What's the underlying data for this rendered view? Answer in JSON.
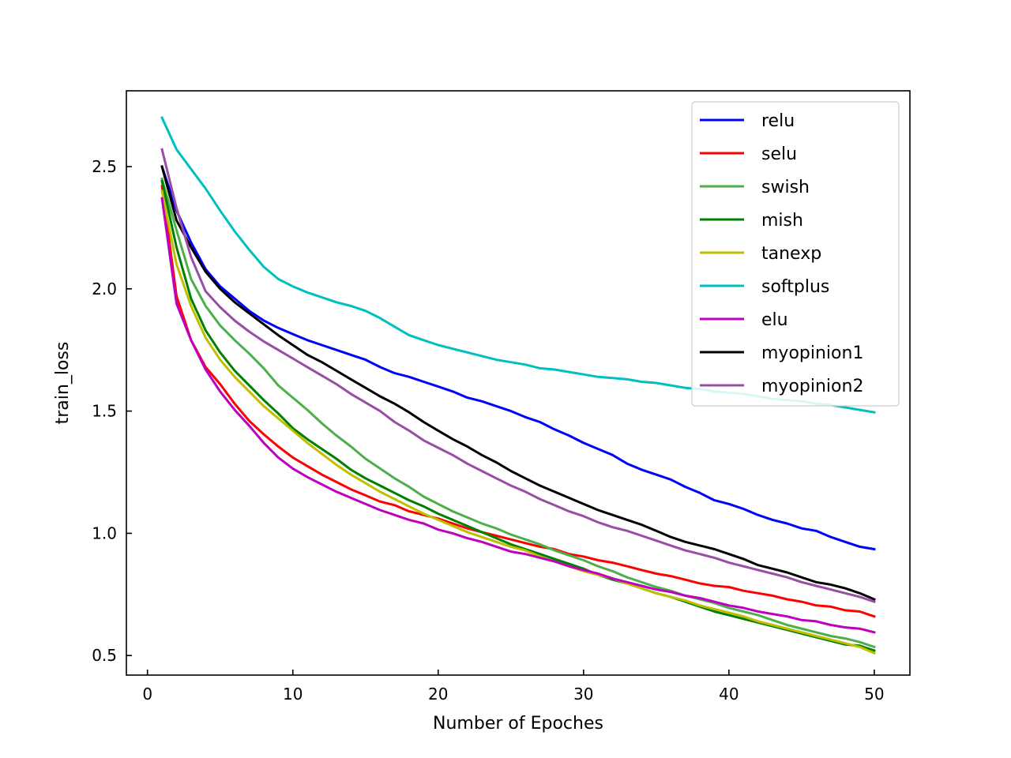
{
  "chart_data": {
    "type": "line",
    "xlabel": "Number of Epoches",
    "ylabel": "train_loss",
    "xlim": [
      -1.45,
      52.45
    ],
    "ylim": [
      0.42,
      2.81
    ],
    "xticks": [
      0,
      10,
      20,
      30,
      40,
      50
    ],
    "yticks": [
      0.5,
      1.0,
      1.5,
      2.0,
      2.5
    ],
    "xtick_labels": [
      "0",
      "10",
      "20",
      "30",
      "40",
      "50"
    ],
    "ytick_labels": [
      "0.5",
      "1.0",
      "1.5",
      "2.0",
      "2.5"
    ],
    "grid": false,
    "legend_position": "top-right",
    "x": [
      1,
      2,
      3,
      4,
      5,
      6,
      7,
      8,
      9,
      10,
      11,
      12,
      13,
      14,
      15,
      16,
      17,
      18,
      19,
      20,
      21,
      22,
      23,
      24,
      25,
      26,
      27,
      28,
      29,
      30,
      31,
      32,
      33,
      34,
      35,
      36,
      37,
      38,
      39,
      40,
      41,
      42,
      43,
      44,
      45,
      46,
      47,
      48,
      49,
      50
    ],
    "series": [
      {
        "name": "relu",
        "color": "#0000ff",
        "values": [
          2.5,
          2.32,
          2.19,
          2.08,
          2.01,
          1.96,
          1.91,
          1.87,
          1.84,
          1.815,
          1.79,
          1.77,
          1.75,
          1.73,
          1.71,
          1.68,
          1.655,
          1.64,
          1.62,
          1.6,
          1.58,
          1.555,
          1.54,
          1.52,
          1.5,
          1.475,
          1.455,
          1.425,
          1.4,
          1.37,
          1.345,
          1.32,
          1.285,
          1.26,
          1.24,
          1.22,
          1.19,
          1.165,
          1.135,
          1.12,
          1.1,
          1.075,
          1.055,
          1.04,
          1.02,
          1.01,
          0.985,
          0.965,
          0.945,
          0.935
        ]
      },
      {
        "name": "selu",
        "color": "#ff0000",
        "values": [
          2.42,
          1.97,
          1.79,
          1.68,
          1.61,
          1.53,
          1.46,
          1.405,
          1.355,
          1.31,
          1.275,
          1.24,
          1.21,
          1.18,
          1.155,
          1.13,
          1.115,
          1.09,
          1.075,
          1.06,
          1.04,
          1.02,
          1.005,
          0.99,
          0.975,
          0.96,
          0.945,
          0.935,
          0.915,
          0.905,
          0.89,
          0.88,
          0.865,
          0.85,
          0.835,
          0.825,
          0.81,
          0.795,
          0.785,
          0.78,
          0.765,
          0.755,
          0.745,
          0.73,
          0.72,
          0.705,
          0.7,
          0.685,
          0.68,
          0.66
        ]
      },
      {
        "name": "swish",
        "color": "#4daf4a",
        "values": [
          2.45,
          2.24,
          2.04,
          1.93,
          1.85,
          1.79,
          1.735,
          1.675,
          1.605,
          1.555,
          1.505,
          1.45,
          1.4,
          1.355,
          1.305,
          1.265,
          1.225,
          1.19,
          1.15,
          1.12,
          1.09,
          1.065,
          1.04,
          1.02,
          0.995,
          0.975,
          0.955,
          0.93,
          0.91,
          0.89,
          0.865,
          0.845,
          0.82,
          0.8,
          0.78,
          0.765,
          0.745,
          0.73,
          0.715,
          0.695,
          0.68,
          0.665,
          0.645,
          0.625,
          0.61,
          0.595,
          0.58,
          0.57,
          0.555,
          0.535
        ]
      },
      {
        "name": "mish",
        "color": "#007f00",
        "values": [
          2.44,
          2.17,
          1.96,
          1.83,
          1.74,
          1.665,
          1.605,
          1.545,
          1.49,
          1.43,
          1.385,
          1.345,
          1.305,
          1.26,
          1.225,
          1.195,
          1.165,
          1.135,
          1.11,
          1.08,
          1.055,
          1.03,
          1.005,
          0.98,
          0.955,
          0.935,
          0.915,
          0.895,
          0.875,
          0.855,
          0.83,
          0.81,
          0.795,
          0.775,
          0.755,
          0.74,
          0.72,
          0.7,
          0.68,
          0.665,
          0.65,
          0.635,
          0.62,
          0.605,
          0.59,
          0.575,
          0.56,
          0.545,
          0.54,
          0.52
        ]
      },
      {
        "name": "tanexp",
        "color": "#bfbf00",
        "values": [
          2.4,
          2.1,
          1.93,
          1.8,
          1.71,
          1.64,
          1.58,
          1.52,
          1.47,
          1.42,
          1.37,
          1.325,
          1.28,
          1.24,
          1.205,
          1.17,
          1.14,
          1.11,
          1.08,
          1.055,
          1.03,
          1.005,
          0.985,
          0.965,
          0.945,
          0.93,
          0.905,
          0.885,
          0.865,
          0.845,
          0.83,
          0.815,
          0.795,
          0.775,
          0.755,
          0.74,
          0.725,
          0.705,
          0.69,
          0.675,
          0.66,
          0.64,
          0.625,
          0.61,
          0.595,
          0.58,
          0.565,
          0.55,
          0.535,
          0.51
        ]
      },
      {
        "name": "softplus",
        "color": "#00bfbf",
        "values": [
          2.7,
          2.57,
          2.49,
          2.41,
          2.32,
          2.235,
          2.16,
          2.09,
          2.04,
          2.01,
          1.985,
          1.965,
          1.945,
          1.93,
          1.91,
          1.88,
          1.845,
          1.81,
          1.79,
          1.77,
          1.755,
          1.74,
          1.725,
          1.71,
          1.7,
          1.69,
          1.675,
          1.67,
          1.66,
          1.65,
          1.64,
          1.635,
          1.63,
          1.62,
          1.615,
          1.605,
          1.595,
          1.59,
          1.58,
          1.575,
          1.57,
          1.56,
          1.55,
          1.545,
          1.54,
          1.53,
          1.525,
          1.515,
          1.505,
          1.495
        ]
      },
      {
        "name": "elu",
        "color": "#bf00bf",
        "values": [
          2.37,
          1.94,
          1.79,
          1.67,
          1.58,
          1.505,
          1.44,
          1.37,
          1.31,
          1.265,
          1.23,
          1.2,
          1.17,
          1.145,
          1.12,
          1.095,
          1.075,
          1.055,
          1.04,
          1.015,
          1.0,
          0.98,
          0.965,
          0.945,
          0.925,
          0.915,
          0.9,
          0.885,
          0.865,
          0.85,
          0.835,
          0.815,
          0.8,
          0.785,
          0.77,
          0.76,
          0.745,
          0.735,
          0.72,
          0.705,
          0.695,
          0.68,
          0.67,
          0.66,
          0.645,
          0.64,
          0.625,
          0.615,
          0.61,
          0.595
        ]
      },
      {
        "name": "myopinion1",
        "color": "#000000",
        "values": [
          2.5,
          2.28,
          2.17,
          2.07,
          2.0,
          1.945,
          1.9,
          1.855,
          1.81,
          1.77,
          1.73,
          1.7,
          1.665,
          1.63,
          1.595,
          1.56,
          1.53,
          1.495,
          1.455,
          1.42,
          1.385,
          1.355,
          1.32,
          1.29,
          1.255,
          1.225,
          1.195,
          1.17,
          1.145,
          1.12,
          1.095,
          1.075,
          1.055,
          1.035,
          1.01,
          0.985,
          0.965,
          0.95,
          0.935,
          0.915,
          0.895,
          0.87,
          0.855,
          0.84,
          0.82,
          0.8,
          0.79,
          0.775,
          0.755,
          0.73
        ]
      },
      {
        "name": "myopinion2",
        "color": "#984ea3",
        "values": [
          2.57,
          2.33,
          2.13,
          1.99,
          1.925,
          1.87,
          1.825,
          1.785,
          1.75,
          1.715,
          1.68,
          1.645,
          1.61,
          1.57,
          1.535,
          1.5,
          1.455,
          1.42,
          1.38,
          1.35,
          1.32,
          1.285,
          1.255,
          1.225,
          1.195,
          1.17,
          1.14,
          1.115,
          1.09,
          1.07,
          1.045,
          1.025,
          1.01,
          0.99,
          0.97,
          0.95,
          0.93,
          0.915,
          0.9,
          0.88,
          0.865,
          0.85,
          0.835,
          0.82,
          0.8,
          0.785,
          0.77,
          0.755,
          0.74,
          0.72
        ]
      }
    ]
  }
}
